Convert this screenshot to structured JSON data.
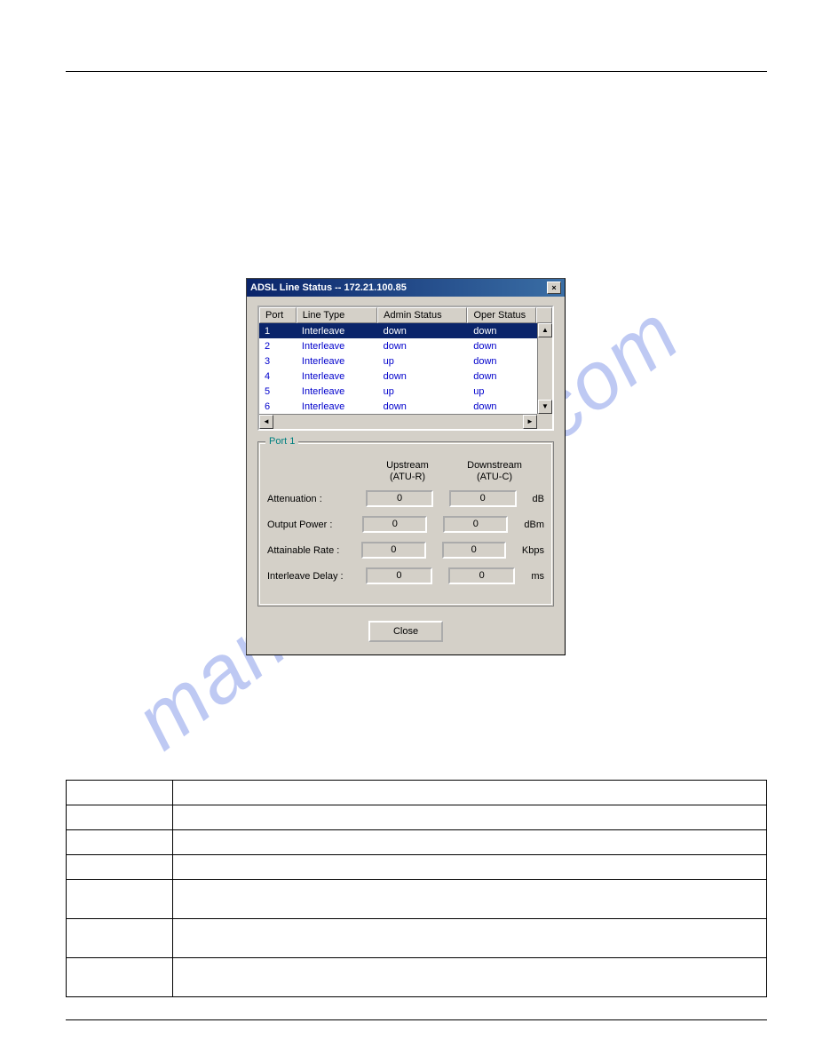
{
  "watermark_text": "manualshive.com",
  "dialog": {
    "title": "ADSL Line Status -- 172.21.100.85",
    "close_x": "×",
    "columns": {
      "port": "Port",
      "line_type": "Line Type",
      "admin_status": "Admin Status",
      "oper_status": "Oper Status"
    },
    "rows": [
      {
        "port": "1",
        "type": "Interleave",
        "admin": "down",
        "oper": "down",
        "selected": true
      },
      {
        "port": "2",
        "type": "Interleave",
        "admin": "down",
        "oper": "down",
        "selected": false
      },
      {
        "port": "3",
        "type": "Interleave",
        "admin": "up",
        "oper": "down",
        "selected": false
      },
      {
        "port": "4",
        "type": "Interleave",
        "admin": "down",
        "oper": "down",
        "selected": false
      },
      {
        "port": "5",
        "type": "Interleave",
        "admin": "up",
        "oper": "up",
        "selected": false
      },
      {
        "port": "6",
        "type": "Interleave",
        "admin": "down",
        "oper": "down",
        "selected": false
      }
    ],
    "group": {
      "label": "Port 1",
      "col_upstream_l1": "Upstream",
      "col_upstream_l2": "(ATU-R)",
      "col_downstream_l1": "Downstream",
      "col_downstream_l2": "(ATU-C)",
      "fields": [
        {
          "label": "Attenuation :",
          "up": "0",
          "down": "0",
          "unit": "dB"
        },
        {
          "label": "Output Power :",
          "up": "0",
          "down": "0",
          "unit": "dBm"
        },
        {
          "label": "Attainable Rate :",
          "up": "0",
          "down": "0",
          "unit": "Kbps"
        },
        {
          "label": "Interleave Delay :",
          "up": "0",
          "down": "0",
          "unit": "ms"
        }
      ]
    },
    "close_button": "Close"
  },
  "desc_rows": [
    {
      "c1": "",
      "c2": ""
    },
    {
      "c1": "",
      "c2": ""
    },
    {
      "c1": "",
      "c2": ""
    },
    {
      "c1": "",
      "c2": ""
    },
    {
      "c1": "",
      "c2": ""
    },
    {
      "c1": "",
      "c2": ""
    },
    {
      "c1": "",
      "c2": ""
    }
  ],
  "colors": {
    "dialog_bg": "#d4d0c8",
    "titlebar_from": "#0a246a",
    "titlebar_to": "#3a6ea5",
    "row_text": "#0000cc",
    "selected_bg": "#0a246a",
    "group_label": "#008080"
  }
}
